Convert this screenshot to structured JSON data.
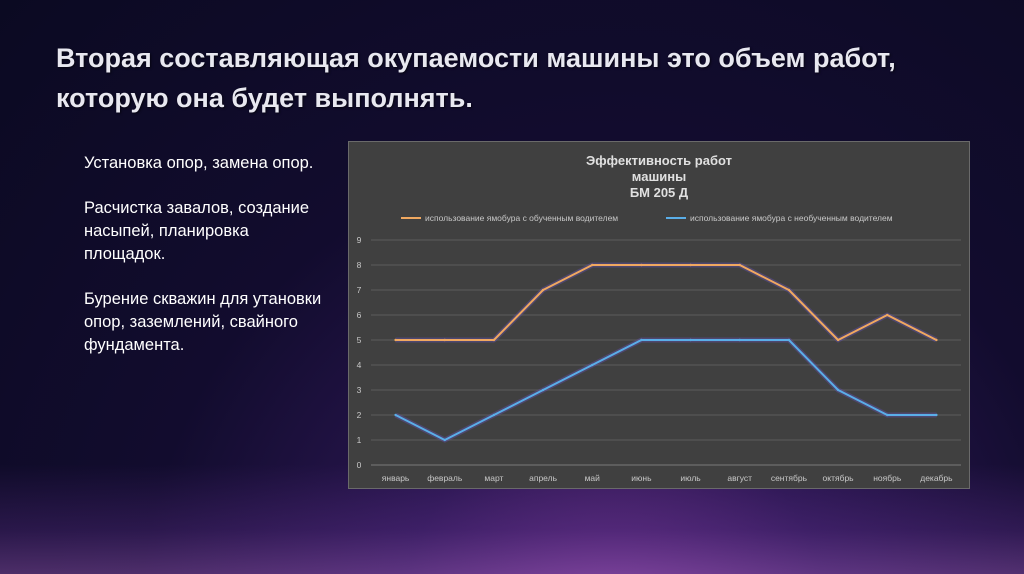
{
  "slide": {
    "title": "Вторая составляющая окупаемости машины это объем работ, которую она будет выполнять.",
    "bullets": [
      "Установка опор, замена опор.",
      "Расчистка завалов, создание насыпей, планировка площадок.",
      "Бурение скважин для утановки опор, заземлений, свайного фундамента."
    ]
  },
  "chart_data": {
    "type": "line",
    "title_lines": [
      "Эффективность работ",
      "машины",
      "БМ 205 Д"
    ],
    "categories": [
      "январь",
      "февраль",
      "март",
      "апрель",
      "май",
      "июнь",
      "июль",
      "август",
      "сентябрь",
      "октябрь",
      "ноябрь",
      "декабрь"
    ],
    "series": [
      {
        "name": "использование ямобура с обученным водителем",
        "color": "#f0a860",
        "values": [
          5,
          5,
          5,
          7,
          8,
          8,
          8,
          8,
          7,
          5,
          6,
          5
        ]
      },
      {
        "name": "использование ямобура с необученным водителем",
        "color": "#5aaee8",
        "values": [
          2,
          1,
          2,
          3,
          4,
          5,
          5,
          5,
          5,
          3,
          2,
          2
        ]
      }
    ],
    "ylim": [
      0,
      9
    ],
    "yticks": [
      0,
      1,
      2,
      3,
      4,
      5,
      6,
      7,
      8,
      9
    ],
    "grid": true,
    "legend": "top"
  }
}
